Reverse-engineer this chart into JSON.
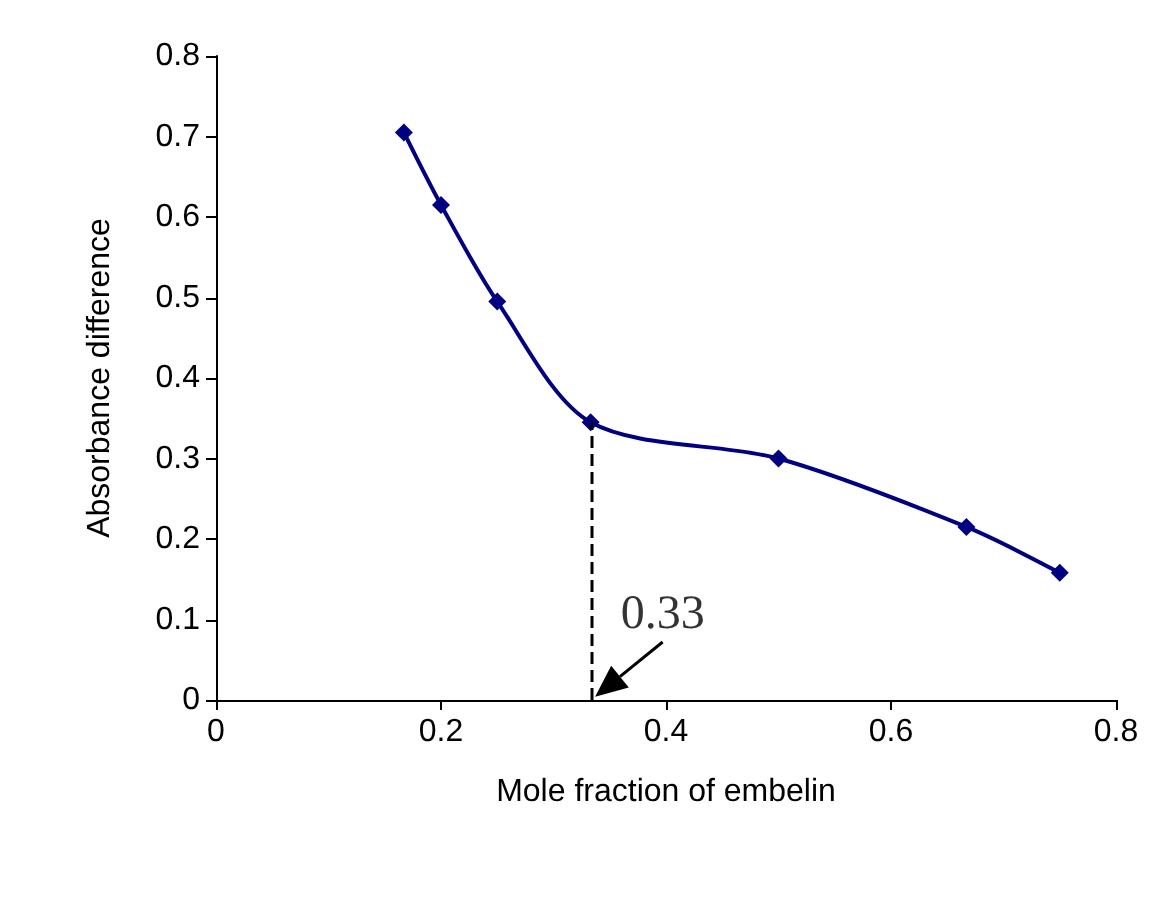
{
  "chart_data": {
    "type": "line",
    "xlabel": "Mole fraction of embelin",
    "ylabel": "Absorbance difference",
    "x": [
      0.167,
      0.2,
      0.25,
      0.333,
      0.5,
      0.667,
      0.75
    ],
    "series": [
      {
        "color": "#000080",
        "values": [
          0.705,
          0.615,
          0.495,
          0.345,
          0.3,
          0.215,
          0.158
        ]
      }
    ],
    "xlim": [
      0,
      0.8
    ],
    "xticks": [
      0,
      0.2,
      0.4,
      0.6,
      0.8
    ],
    "ylim": [
      0,
      0.8
    ],
    "yticks": [
      0,
      0.1,
      0.2,
      0.3,
      0.4,
      0.5,
      0.6,
      0.7,
      0.8
    ],
    "marker": "diamond",
    "line_style": "solid",
    "ref_lines": [
      {
        "axis": "x",
        "value": 0.333,
        "line_style": "dashed",
        "color": "#000000"
      }
    ],
    "annotations": [
      {
        "text": "0.33",
        "x": 0.333,
        "y": 0
      }
    ]
  }
}
